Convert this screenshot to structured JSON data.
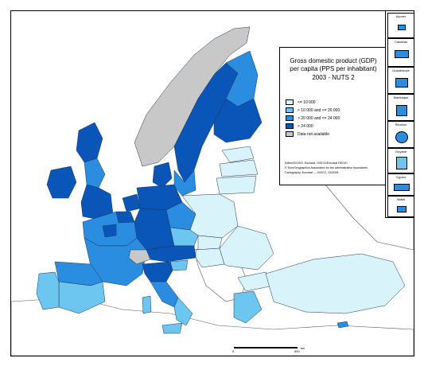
{
  "legend": {
    "title_lines": [
      "Gross domestic product (GDP)",
      "per capita (PPS per inhabitant)",
      "2003 - NUTS 2"
    ],
    "classes": [
      {
        "label": "<= 10 000",
        "color": "#d9f3fb"
      },
      {
        "label": "> 10 000 and <= 20 000",
        "color": "#6cc6f0"
      },
      {
        "label": "> 20 000 and <= 24 000",
        "color": "#2a8de0"
      },
      {
        "label": "> 24 000",
        "color": "#0a56b8"
      },
      {
        "label": "Data not available",
        "color": "#c8c8c8"
      }
    ],
    "source_lines": [
      "EditorGIS/GIS, Eurostat, GISCO/Eurostat REGIO",
      "© EuroGeographics Association for the administrative boundaries",
      "Cartography: Eurostat — GISCO, 03/2006"
    ]
  },
  "insets": [
    {
      "label": "Açores",
      "color": "#2a8de0"
    },
    {
      "label": "Canarias",
      "color": "#2a8de0"
    },
    {
      "label": "Guadeloupe",
      "color": "#2a8de0"
    },
    {
      "label": "Martinique",
      "color": "#2a8de0"
    },
    {
      "label": "Réunion",
      "color": "#2a8de0"
    },
    {
      "label": "Guyane",
      "color": "#6cc6f0"
    },
    {
      "label": "Cyprus",
      "color": "#2a8de0"
    },
    {
      "label": "Malta",
      "color": "#2a8de0"
    }
  ],
  "scale": {
    "label": "km",
    "marks": [
      "0",
      "500"
    ]
  },
  "colors": {
    "sea": "#ffffff",
    "outside": "#ffffff",
    "no_data": "#c8c8c8"
  }
}
